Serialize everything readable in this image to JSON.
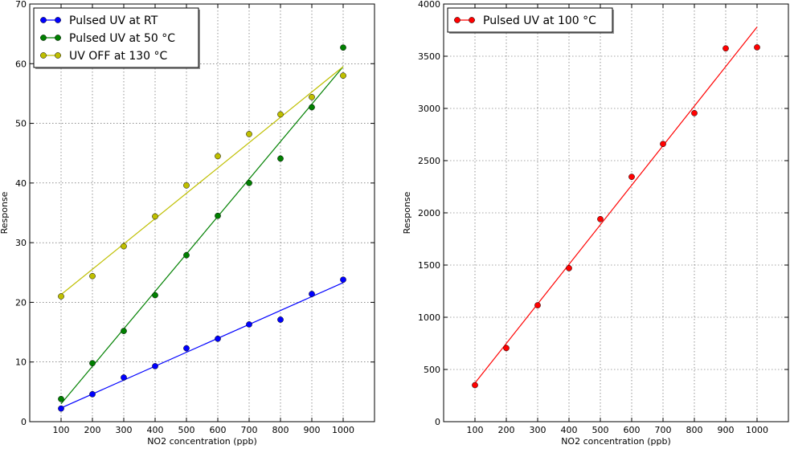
{
  "chart_data": [
    {
      "type": "scatter",
      "title": "",
      "xlabel": "NO2 concentration (ppb)",
      "ylabel": "Response",
      "xlim": [
        0,
        1100
      ],
      "ylim": [
        0,
        70
      ],
      "xticks": [
        100,
        200,
        300,
        400,
        500,
        600,
        700,
        800,
        900,
        1000
      ],
      "yticks": [
        0,
        10,
        20,
        30,
        40,
        50,
        60,
        70
      ],
      "grid": true,
      "legend": "top-left",
      "series": [
        {
          "name": "Pulsed UV at RT",
          "color": "#0000ff",
          "x": [
            100,
            200,
            300,
            400,
            500,
            600,
            700,
            800,
            900,
            1000
          ],
          "y": [
            2.2,
            4.6,
            7.4,
            9.3,
            12.3,
            13.9,
            16.3,
            17.1,
            21.4,
            23.8
          ],
          "fit": [
            [
              100,
              2.3
            ],
            [
              1000,
              23.3
            ]
          ]
        },
        {
          "name": "Pulsed UV at 50 °C",
          "color": "#008000",
          "x": [
            100,
            200,
            300,
            400,
            500,
            600,
            700,
            800,
            900,
            1000
          ],
          "y": [
            3.8,
            9.8,
            15.2,
            21.2,
            27.9,
            34.5,
            40.0,
            44.1,
            52.7,
            62.7
          ],
          "fit": [
            [
              100,
              3.0
            ],
            [
              1000,
              59.5
            ]
          ]
        },
        {
          "name": "UV OFF at 130 °C",
          "color": "#bfbf00",
          "x": [
            100,
            200,
            300,
            400,
            500,
            600,
            700,
            800,
            900,
            1000
          ],
          "y": [
            21.0,
            24.4,
            29.4,
            34.4,
            39.6,
            44.5,
            48.2,
            51.5,
            54.4,
            58.0
          ],
          "fit": [
            [
              100,
              21.3
            ],
            [
              1000,
              59.5
            ]
          ]
        }
      ]
    },
    {
      "type": "scatter",
      "title": "",
      "xlabel": "NO2 concentration (ppb)",
      "ylabel": "Response",
      "xlim": [
        0,
        1100
      ],
      "ylim": [
        0,
        4000
      ],
      "xticks": [
        100,
        200,
        300,
        400,
        500,
        600,
        700,
        800,
        900,
        1000
      ],
      "yticks": [
        0,
        500,
        1000,
        1500,
        2000,
        2500,
        3000,
        3500,
        4000
      ],
      "grid": true,
      "legend": "top-left",
      "series": [
        {
          "name": "Pulsed UV at 100 °C",
          "color": "#ff0000",
          "x": [
            100,
            200,
            300,
            400,
            500,
            600,
            700,
            800,
            900,
            1000
          ],
          "y": [
            350,
            705,
            1115,
            1470,
            1940,
            2345,
            2660,
            2955,
            3575,
            3585
          ],
          "fit": [
            [
              100,
              370
            ],
            [
              1000,
              3780
            ]
          ]
        }
      ]
    }
  ]
}
